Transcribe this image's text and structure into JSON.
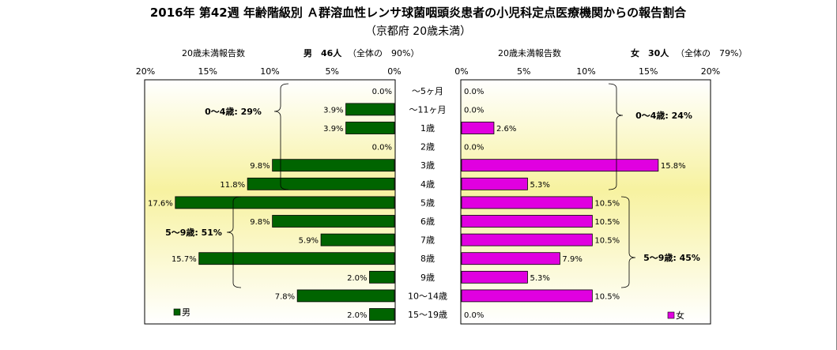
{
  "title": "2016年 第42週 年齢階級別 Ａ群溶血性レンサ球菌咽頭炎患者の小児科定点医療機関からの報告割合",
  "subtitle": "（京都府 20歳未満）",
  "colors": {
    "male_bar": "#006400",
    "female_bar": "#e000e0",
    "plot_bg_edge": "#ffffff",
    "plot_bg_center": "#f7f2a0"
  },
  "chart_data": [
    {
      "type": "bar",
      "orientation": "horizontal",
      "direction": "right-to-left",
      "header_count_label": "20歳未満報告数",
      "header_group": "男　46人",
      "header_share": "（全体の　90%）",
      "legend_label": "男",
      "legend_position": "bottom-left",
      "xlim": [
        0,
        20
      ],
      "ticks": [
        "20%",
        "15%",
        "10%",
        "5%",
        "0%"
      ],
      "categories": [
        "～5ヶ月",
        "～11ヶ月",
        "1歳",
        "2歳",
        "3歳",
        "4歳",
        "5歳",
        "6歳",
        "7歳",
        "8歳",
        "9歳",
        "10～14歳",
        "15～19歳"
      ],
      "values": [
        0.0,
        3.9,
        3.9,
        0.0,
        9.8,
        11.8,
        17.6,
        9.8,
        5.9,
        15.7,
        2.0,
        7.8,
        2.0
      ],
      "value_labels": [
        "0.0%",
        "3.9%",
        "3.9%",
        "0.0%",
        "9.8%",
        "11.8%",
        "17.6%",
        "9.8%",
        "5.9%",
        "15.7%",
        "2.0%",
        "7.8%",
        "2.0%"
      ],
      "annotations": [
        "0～4歳: 29%",
        "5～9歳: 51%"
      ]
    },
    {
      "type": "bar",
      "orientation": "horizontal",
      "direction": "left-to-right",
      "header_count_label": "20歳未満報告数",
      "header_group": "女　30人",
      "header_share": "（全体の　79%）",
      "legend_label": "女",
      "legend_position": "bottom-right",
      "xlim": [
        0,
        20
      ],
      "ticks": [
        "0%",
        "5%",
        "10%",
        "15%",
        "20%"
      ],
      "categories": [
        "～5ヶ月",
        "～11ヶ月",
        "1歳",
        "2歳",
        "3歳",
        "4歳",
        "5歳",
        "6歳",
        "7歳",
        "8歳",
        "9歳",
        "10～14歳",
        "15～19歳"
      ],
      "values": [
        0.0,
        0.0,
        2.6,
        0.0,
        15.8,
        5.3,
        10.5,
        10.5,
        10.5,
        7.9,
        5.3,
        10.5,
        0.0
      ],
      "value_labels": [
        "0.0%",
        "0.0%",
        "2.6%",
        "0.0%",
        "15.8%",
        "5.3%",
        "10.5%",
        "10.5%",
        "10.5%",
        "7.9%",
        "5.3%",
        "10.5%",
        "0.0%"
      ],
      "annotations": [
        "0～4歳: 24%",
        "5～9歳: 45%"
      ]
    }
  ]
}
